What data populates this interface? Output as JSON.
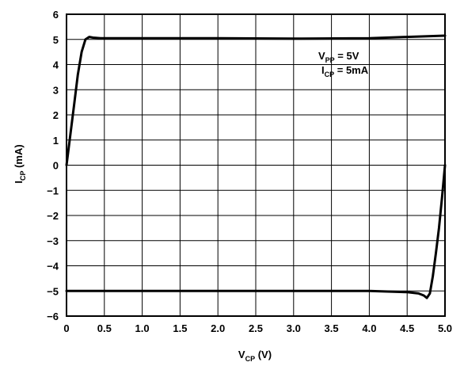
{
  "chart_data": {
    "type": "line",
    "title": "",
    "xlabel": {
      "main": "V",
      "sub": "CP",
      "unit": " (V)"
    },
    "ylabel": {
      "main": "I",
      "sub": "CP",
      "unit": " (mA)"
    },
    "xlim": [
      0,
      5
    ],
    "ylim": [
      -6,
      6
    ],
    "xticks": [
      "0",
      "0.5",
      "1.0",
      "1.5",
      "2.0",
      "2.5",
      "3.0",
      "3.5",
      "4.0",
      "4.5",
      "5.0"
    ],
    "yticks": [
      "6",
      "5",
      "4",
      "3",
      "2",
      "1",
      "0",
      "−1",
      "−2",
      "−3",
      "−4",
      "−5",
      "−6"
    ],
    "grid": true,
    "annotations": [
      {
        "main": "V",
        "sub": "PP",
        "rest": " = 5V"
      },
      {
        "main": "I",
        "sub": "CP",
        "rest": " = 5mA"
      }
    ],
    "series": [
      {
        "x": [
          0,
          0.05,
          0.1,
          0.15,
          0.2,
          0.25,
          0.3,
          0.35,
          0.45,
          1.0,
          2.0,
          3.0,
          4.0,
          4.5,
          5.0
        ],
        "values": [
          0,
          1.2,
          2.4,
          3.6,
          4.5,
          5.0,
          5.1,
          5.07,
          5.05,
          5.05,
          5.05,
          5.03,
          5.05,
          5.1,
          5.15
        ]
      },
      {
        "x": [
          0,
          1.0,
          2.0,
          3.0,
          4.0,
          4.2,
          4.5,
          4.65,
          4.72,
          4.76,
          4.8,
          4.84,
          4.88,
          4.92,
          4.96,
          5.0
        ],
        "values": [
          -5.0,
          -5.0,
          -5.0,
          -5.0,
          -5.0,
          -5.02,
          -5.05,
          -5.1,
          -5.18,
          -5.28,
          -5.1,
          -4.4,
          -3.5,
          -2.5,
          -1.3,
          0
        ]
      }
    ]
  }
}
